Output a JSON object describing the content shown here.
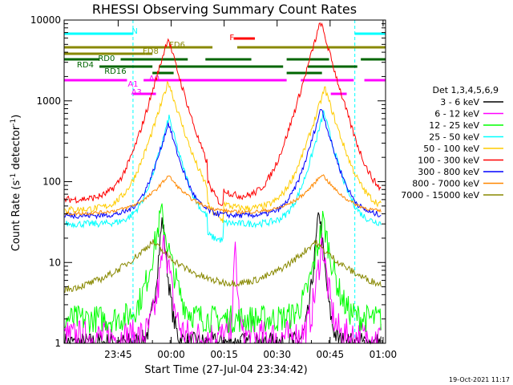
{
  "chart_data": {
    "type": "line",
    "title": "RHESSI Observing Summary Count Rates",
    "xlabel": "Start Time (27-Jul-04 23:34:42)",
    "ylabel_parts": [
      "Count Rate (s",
      "-1",
      " detector",
      "-1",
      ")"
    ],
    "yscale": "log",
    "xlim": [
      -5,
      86
    ],
    "ylim": [
      1,
      10000
    ],
    "grid": false,
    "legend_position": "right",
    "legend_title": "Det 1,3,4,5,6,9",
    "x_ticks": [
      {
        "t": 10.3,
        "label": "23:45"
      },
      {
        "t": 25.3,
        "label": "00:00"
      },
      {
        "t": 40.3,
        "label": "00:15"
      },
      {
        "t": 55.3,
        "label": "00:30"
      },
      {
        "t": 70.3,
        "label": "00:45"
      },
      {
        "t": 85.3,
        "label": "01:00"
      }
    ],
    "y_ticks": [
      {
        "v": 1,
        "label": "1"
      },
      {
        "v": 10,
        "label": "10"
      },
      {
        "v": 100,
        "label": "100"
      },
      {
        "v": 1000,
        "label": "1000"
      },
      {
        "v": 10000,
        "label": "10000"
      }
    ],
    "series": [
      {
        "name": "3 - 6 keV",
        "color": "#000000",
        "base": 1.02,
        "peaks": [
          [
            22.8,
            35,
            0.9
          ],
          [
            67.2,
            45,
            0.9
          ]
        ],
        "noise": 0.3
      },
      {
        "name": "6 - 12 keV",
        "color": "#ff00ff",
        "base": 1.2,
        "peaks": [
          [
            23.5,
            20,
            1.1
          ],
          [
            68,
            18,
            1.1
          ],
          [
            43.5,
            15,
            0.4
          ]
        ],
        "noise": 0.5
      },
      {
        "name": "12 - 25 keV",
        "color": "#00ff00",
        "base": 2.0,
        "peaks": [
          [
            22.5,
            40,
            1.8
          ],
          [
            68.3,
            32,
            1.8
          ]
        ],
        "noise": 0.4
      },
      {
        "name": "25 - 50 keV",
        "color": "#00ffff",
        "base": 30,
        "peaks": [
          [
            24.7,
            600,
            2.5
          ],
          [
            68.5,
            700,
            2.5
          ]
        ],
        "noise": 0.1
      },
      {
        "name": "50 - 100 keV",
        "color": "#ffcc00",
        "base": 45,
        "peaks": [
          [
            24.5,
            1700,
            3.0
          ],
          [
            68.8,
            1400,
            3.0
          ]
        ],
        "noise": 0.1
      },
      {
        "name": "100 - 300 keV",
        "color": "#ff0000",
        "base": 60,
        "peaks": [
          [
            24.4,
            6000,
            2.8
          ],
          [
            67.6,
            9500,
            2.8
          ]
        ],
        "noise": 0.1
      },
      {
        "name": "300 - 800 keV",
        "color": "#0000ff",
        "base": 38,
        "peaks": [
          [
            24.5,
            500,
            2.6
          ],
          [
            67.8,
            800,
            2.6
          ]
        ],
        "noise": 0.08
      },
      {
        "name": "800 - 7000 keV",
        "color": "#ff8800",
        "base": 40,
        "peaks": [
          [
            24.5,
            80,
            5
          ],
          [
            68,
            85,
            5
          ]
        ],
        "noise": 0.05
      },
      {
        "name": "7000 - 15000 keV",
        "color": "#888800",
        "base": 4,
        "peaks": [
          [
            20,
            14,
            8
          ],
          [
            66,
            14,
            8
          ]
        ],
        "noise": 0.1
      }
    ],
    "annotations": [
      {
        "text": "N",
        "color": "#00ffff",
        "t": 15
      },
      {
        "text": "FD6",
        "color": "#888800",
        "t": 27
      },
      {
        "text": "FD8",
        "color": "#888800",
        "t": 19.5
      },
      {
        "text": "RD0",
        "color": "#006600",
        "t": 7
      },
      {
        "text": "RD4",
        "color": "#006600",
        "t": 1
      },
      {
        "text": "RD16",
        "color": "#006600",
        "t": 9.5
      },
      {
        "text": "A1",
        "color": "#ff00ff",
        "t": 14.5
      },
      {
        "text": "A0",
        "color": "#ff00ff",
        "t": 20.5
      },
      {
        "text": "A3",
        "color": "#ff00ff",
        "t": 15.5
      },
      {
        "text": "F",
        "color": "#ff0000",
        "t": 42.5
      }
    ],
    "state_bars": {
      "night": [
        [
          -5,
          14.5
        ],
        [
          77.3,
          88
        ]
      ],
      "attenuator_a1": [
        [
          -5,
          12.8
        ],
        [
          17.5,
          58
        ],
        [
          62,
          77
        ],
        [
          80,
          86
        ]
      ],
      "attenuator_a3": [
        [
          14.5,
          21
        ],
        [
          70.5,
          75
        ]
      ],
      "flare_f": [
        [
          43,
          49
        ]
      ]
    },
    "timestamp": "19-Oct-2021 11:17"
  }
}
